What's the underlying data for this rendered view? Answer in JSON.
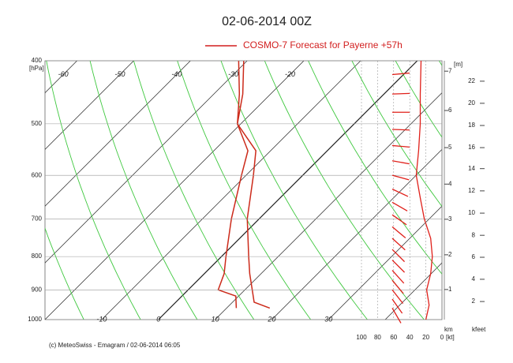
{
  "chart_data": {
    "type": "emagram",
    "title": "02-06-2014  00Z",
    "legend_label": "COSMO-7 Forecast for Payerne   +57h",
    "footer": "(c) MeteoSwiss - Emagram  /  02-06-2014 06:05",
    "y_label": "[hPa]",
    "km_label": "km",
    "m_label": "[m]",
    "kfeet_label": "kfeet",
    "wind_unit_label": "[kt]",
    "log_y": true,
    "ylim": [
      1000,
      400
    ],
    "yticks": [
      400,
      500,
      600,
      700,
      800,
      900,
      1000
    ],
    "xlim": [
      -20,
      50
    ],
    "xticks": [
      -10,
      0,
      10,
      20,
      30
    ],
    "top_xticks": [
      -60,
      -50,
      -40,
      -30,
      -20
    ],
    "isotherms": [
      -100,
      -90,
      -80,
      -70,
      -60,
      -50,
      -40,
      -30,
      -20,
      -10,
      0,
      10,
      20,
      30,
      40,
      50
    ],
    "dry_adiabats": [
      260,
      270,
      280,
      290,
      300,
      310,
      320,
      330,
      340,
      350,
      360,
      370,
      380,
      390,
      400
    ],
    "series": [
      {
        "name": "Temperature",
        "color": "#cc2a1a",
        "pressure": [
          960,
          940,
          900,
          850,
          800,
          700,
          600,
          550,
          500,
          450,
          400
        ],
        "values": [
          17.6,
          13.8,
          11.3,
          8.0,
          4.8,
          -2.1,
          -8.7,
          -12.6,
          -20.6,
          -24.9,
          -30.6
        ]
      },
      {
        "name": "Dew point",
        "color": "#cc2a1a",
        "pressure": [
          960,
          920,
          900,
          850,
          800,
          700,
          600,
          550,
          500,
          450,
          400
        ],
        "values": [
          11.7,
          9.5,
          5.3,
          3.5,
          0.8,
          -4.9,
          -10.8,
          -14.0,
          -20.6,
          -25.5,
          -31.5
        ]
      }
    ],
    "wind": {
      "color": "#e0201a",
      "xlim": [
        100,
        0
      ],
      "xticks": [
        100,
        80,
        60,
        40,
        20,
        0
      ],
      "pressure": [
        400,
        450,
        500,
        550,
        600,
        650,
        700,
        750,
        800,
        850,
        900,
        950,
        1000
      ],
      "speed": [
        26,
        27,
        27,
        29,
        32,
        27,
        22,
        14,
        12,
        14,
        19,
        16,
        20
      ],
      "arrow_pressure": [
        420,
        450,
        480,
        510,
        540,
        570,
        600,
        630,
        660,
        690,
        720,
        750,
        780,
        810,
        840,
        870,
        900,
        930,
        960
      ],
      "direction": [
        265,
        268,
        270,
        272,
        275,
        280,
        285,
        295,
        300,
        305,
        310,
        312,
        315,
        315,
        318,
        320,
        322,
        325,
        330
      ]
    },
    "km_axis": {
      "labels": [
        1,
        2,
        3,
        4,
        5,
        6,
        7
      ],
      "pressure": [
        899,
        795,
        701,
        619,
        544,
        477,
        415
      ]
    },
    "kfeet_axis": {
      "labels": [
        2,
        4,
        6,
        8,
        10,
        12,
        14,
        16,
        18,
        20,
        22
      ],
      "pressure": [
        938,
        867,
        802,
        742,
        686,
        634,
        586,
        544,
        503,
        465,
        430
      ]
    }
  }
}
